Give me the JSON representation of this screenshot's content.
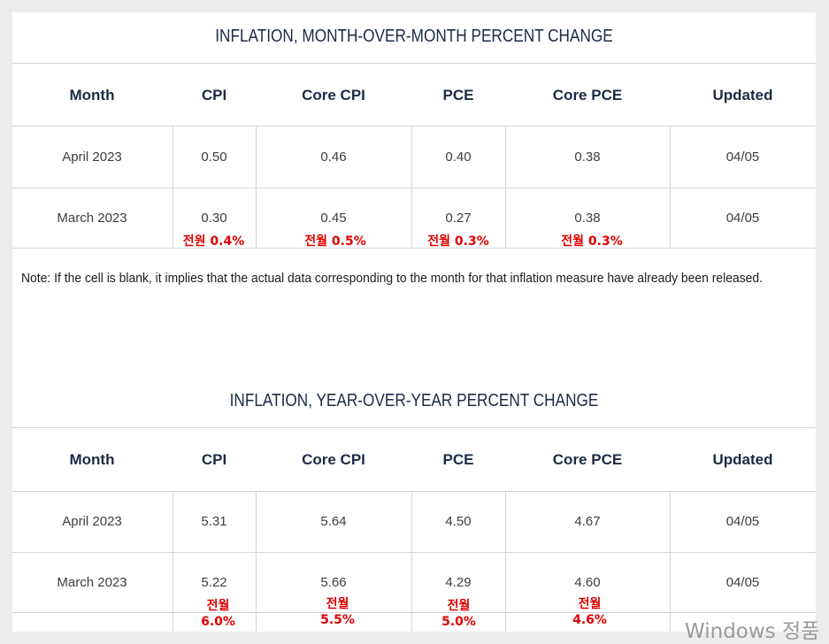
{
  "mom": {
    "title": "INFLATION, MONTH-OVER-MONTH PERCENT CHANGE",
    "headers": [
      "Month",
      "CPI",
      "Core CPI",
      "PCE",
      "Core PCE",
      "Updated"
    ],
    "rows": [
      {
        "month": "April 2023",
        "cpi": "0.50",
        "core_cpi": "0.46",
        "pce": "0.40",
        "core_pce": "0.38",
        "updated": "04/05"
      },
      {
        "month": "March 2023",
        "cpi": "0.30",
        "core_cpi": "0.45",
        "pce": "0.27",
        "core_pce": "0.38",
        "updated": "04/05"
      }
    ],
    "annotations": {
      "cpi": "전원 0.4%",
      "core_cpi": "전월 0.5%",
      "pce": "전월 0.3%",
      "core_pce": "전월 0.3%"
    }
  },
  "note": "Note: If the cell is blank, it implies that the actual data corresponding to the month for that inflation measure have already been released.",
  "yoy": {
    "title": "INFLATION, YEAR-OVER-YEAR PERCENT CHANGE",
    "headers": [
      "Month",
      "CPI",
      "Core CPI",
      "PCE",
      "Core PCE",
      "Updated"
    ],
    "rows": [
      {
        "month": "April 2023",
        "cpi": "5.31",
        "core_cpi": "5.64",
        "pce": "4.50",
        "core_pce": "4.67",
        "updated": "04/05"
      },
      {
        "month": "March 2023",
        "cpi": "5.22",
        "core_cpi": "5.66",
        "pce": "4.29",
        "core_pce": "4.60",
        "updated": "04/05"
      }
    ],
    "annotations": {
      "label": "전월",
      "cpi": "6.0%",
      "core_cpi": "5.5%",
      "pce": "5.0%",
      "core_pce": "4.6%"
    }
  },
  "watermark": "Windows 정품"
}
